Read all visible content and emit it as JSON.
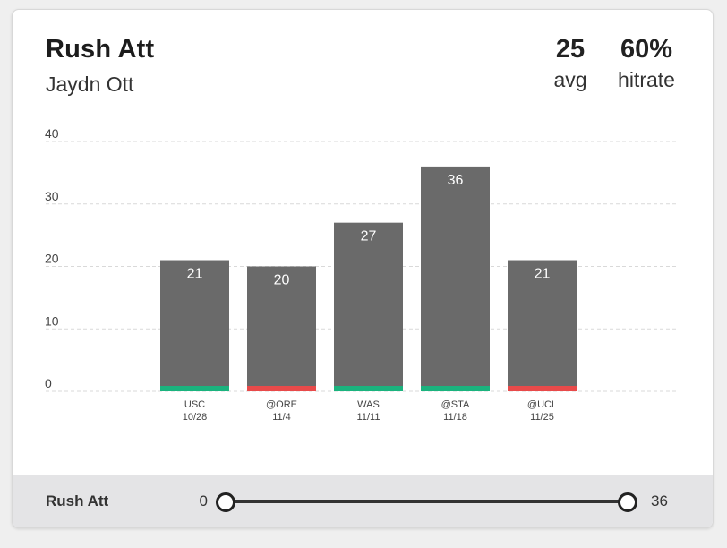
{
  "header": {
    "title": "Rush Att",
    "player": "Jaydn Ott",
    "avg_value": "25",
    "avg_label": "avg",
    "hitrate_value": "60%",
    "hitrate_label": "hitrate"
  },
  "chart_data": {
    "type": "bar",
    "ylim": [
      0,
      40
    ],
    "yticks": [
      0,
      10,
      20,
      30,
      40
    ],
    "grid": true,
    "categories": [
      {
        "opponent": "USC",
        "date": "10/28",
        "value": 21,
        "status": "hit"
      },
      {
        "opponent": "@ORE",
        "date": "11/4",
        "value": 20,
        "status": "miss"
      },
      {
        "opponent": "WAS",
        "date": "11/11",
        "value": 27,
        "status": "hit"
      },
      {
        "opponent": "@STA",
        "date": "11/18",
        "value": 36,
        "status": "hit"
      },
      {
        "opponent": "@UCL",
        "date": "11/25",
        "value": 21,
        "status": "miss"
      }
    ],
    "colors": {
      "bar": "#6a6a6a",
      "hit": "#1bb37e",
      "miss": "#e84a4a",
      "grid": "#d9d9d9",
      "tick": "#444444",
      "label": "#ffffff"
    }
  },
  "footer": {
    "label": "Rush Att",
    "range_min": "0",
    "range_max": "36"
  }
}
